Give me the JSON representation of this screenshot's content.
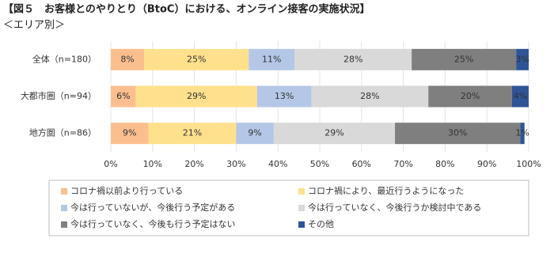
{
  "chart_data": {
    "type": "stacked-bar-horizontal",
    "title": "【図５　お客様とのやりとり（BtoC）における、オンライン接客の実施状況】",
    "subtitle": "＜エリア別＞",
    "categories": [
      "全体（n=180）",
      "大都市圏（n=94）",
      "地方圏（n=86）"
    ],
    "series": [
      {
        "name": "コロナ禍以前より行っている",
        "color": "#fbbf8f",
        "values": [
          8,
          6,
          9
        ],
        "value_labels": [
          "8%",
          "6%",
          "9%"
        ]
      },
      {
        "name": "コロナ禍により、最近行うようになった",
        "color": "#ffe08c",
        "values": [
          25,
          29,
          21
        ],
        "value_labels": [
          "25%",
          "29%",
          "21%"
        ]
      },
      {
        "name": "今は行っていないが、今後行う予定がある",
        "color": "#b4c7e7",
        "values": [
          11,
          13,
          9
        ],
        "value_labels": [
          "11%",
          "13%",
          "9%"
        ]
      },
      {
        "name": "今は行っていなく、今後行うか検討中である",
        "color": "#d9d9d9",
        "values": [
          28,
          28,
          29
        ],
        "value_labels": [
          "28%",
          "28%",
          "29%"
        ]
      },
      {
        "name": "今は行っていなく、今後も行う予定はない",
        "color": "#7f7f7f",
        "values": [
          25,
          20,
          30
        ],
        "value_labels": [
          "25%",
          "20%",
          "30%"
        ]
      },
      {
        "name": "その他",
        "color": "#2f5597",
        "values": [
          3,
          4,
          1
        ],
        "value_labels": [
          "3%",
          "4%",
          "1%"
        ]
      }
    ],
    "xlim": [
      0,
      100
    ],
    "xticks": [
      {
        "value": 0,
        "label": "0%"
      },
      {
        "value": 10,
        "label": "10%"
      },
      {
        "value": 20,
        "label": "20%"
      },
      {
        "value": 30,
        "label": "30%"
      },
      {
        "value": 40,
        "label": "40%"
      },
      {
        "value": 50,
        "label": "50%"
      },
      {
        "value": 60,
        "label": "60%"
      },
      {
        "value": 70,
        "label": "70%"
      },
      {
        "value": 80,
        "label": "80%"
      },
      {
        "value": 90,
        "label": "90%"
      },
      {
        "value": 100,
        "label": "100%"
      }
    ],
    "grid": true
  }
}
